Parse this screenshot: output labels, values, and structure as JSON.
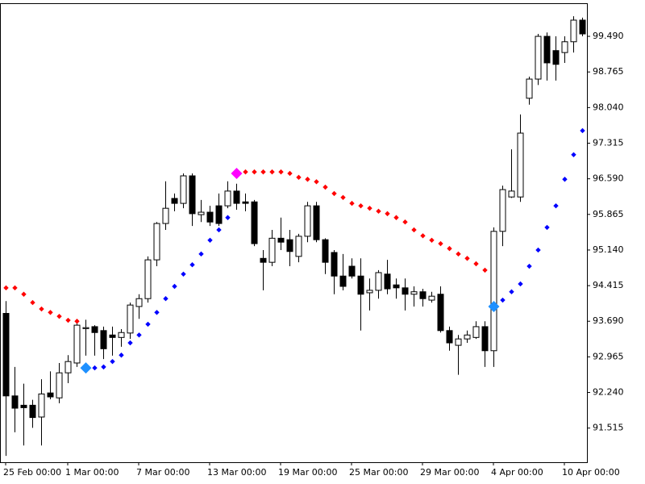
{
  "chart_data": {
    "type": "candlestick",
    "categories": [
      "25 Feb 00:00",
      null,
      null,
      null,
      null,
      null,
      null,
      "1 Mar 00:00",
      null,
      null,
      null,
      null,
      null,
      null,
      null,
      "7 Mar 00:00",
      null,
      null,
      null,
      null,
      null,
      null,
      null,
      "13 Mar 00:00",
      null,
      null,
      null,
      null,
      null,
      null,
      null,
      "19 Mar 00:00",
      null,
      null,
      null,
      null,
      null,
      null,
      null,
      "25 Mar 00:00",
      null,
      null,
      null,
      null,
      null,
      null,
      null,
      "29 Mar 00:00",
      null,
      null,
      null,
      null,
      null,
      null,
      null,
      "4 Apr 00:00",
      null,
      null,
      null,
      null,
      null,
      null,
      null,
      "10 Apr 00:00",
      null,
      null
    ],
    "open": [
      93.85,
      92.17,
      91.98,
      91.98,
      91.74,
      92.23,
      92.13,
      92.64,
      92.84,
      93.54,
      93.58,
      93.5,
      93.41,
      93.36,
      93.45,
      93.99,
      94.15,
      94.94,
      95.68,
      96.19,
      96.09,
      96.65,
      95.86,
      95.91,
      96.04,
      96.04,
      96.34,
      96.12,
      96.12,
      94.97,
      94.89,
      95.38,
      95.35,
      95.01,
      95.42,
      96.04,
      95.35,
      95.09,
      94.61,
      94.81,
      94.61,
      94.27,
      94.32,
      94.65,
      94.43,
      94.37,
      94.24,
      94.29,
      94.12,
      94.24,
      93.5,
      93.2,
      93.33,
      93.36,
      93.58,
      93.09,
      95.52,
      96.22,
      96.22,
      98.23,
      98.62,
      99.49,
      99.2,
      99.16,
      99.38,
      99.82
    ],
    "high": [
      94.1,
      92.76,
      92.42,
      92.09,
      92.51,
      92.67,
      92.84,
      93.0,
      93.69,
      93.72,
      93.61,
      93.58,
      93.58,
      93.53,
      94.07,
      94.24,
      95.01,
      95.71,
      96.54,
      96.29,
      96.7,
      96.7,
      96.16,
      96.04,
      96.29,
      96.54,
      96.49,
      96.29,
      96.16,
      95.14,
      95.55,
      95.8,
      95.55,
      95.47,
      96.12,
      96.12,
      95.38,
      95.14,
      95.06,
      94.97,
      94.97,
      94.56,
      94.73,
      94.94,
      94.56,
      94.56,
      94.4,
      94.35,
      94.29,
      94.4,
      93.58,
      93.41,
      93.5,
      93.69,
      93.69,
      95.6,
      96.45,
      97.19,
      97.9,
      98.67,
      99.54,
      99.57,
      99.49,
      99.49,
      99.9,
      99.87
    ],
    "low": [
      90.95,
      91.43,
      91.16,
      91.52,
      91.16,
      92.1,
      92.02,
      92.43,
      92.76,
      92.99,
      92.99,
      92.92,
      92.99,
      93.17,
      93.33,
      93.74,
      94.07,
      94.81,
      95.55,
      95.93,
      95.99,
      95.63,
      95.71,
      95.63,
      95.63,
      95.99,
      95.96,
      95.93,
      95.22,
      94.32,
      94.81,
      95.14,
      94.81,
      94.89,
      95.3,
      95.3,
      94.65,
      94.24,
      94.32,
      94.56,
      93.5,
      93.91,
      94.15,
      94.24,
      94.15,
      93.91,
      93.99,
      93.99,
      94.07,
      93.46,
      93.09,
      92.6,
      93.25,
      93.33,
      92.76,
      92.76,
      95.22,
      96.2,
      96.12,
      98.1,
      98.5,
      98.59,
      98.59,
      98.95,
      99.16,
      99.49
    ],
    "close": [
      92.17,
      91.92,
      91.93,
      91.73,
      92.21,
      92.15,
      92.64,
      92.87,
      93.61,
      93.56,
      93.46,
      93.13,
      93.36,
      93.46,
      94.02,
      94.15,
      94.94,
      95.68,
      95.99,
      96.09,
      96.65,
      95.88,
      95.91,
      95.71,
      95.68,
      96.34,
      96.09,
      96.09,
      95.27,
      94.89,
      95.38,
      95.3,
      95.11,
      95.42,
      96.04,
      95.35,
      94.89,
      94.61,
      94.4,
      94.61,
      94.24,
      94.32,
      94.68,
      94.35,
      94.37,
      94.24,
      94.29,
      94.15,
      94.2,
      93.5,
      93.25,
      93.33,
      93.41,
      93.58,
      93.09,
      95.52,
      96.37,
      96.34,
      97.52,
      98.62,
      99.49,
      98.95,
      98.92,
      99.38,
      99.82,
      99.54
    ],
    "up_color": "#ffffff",
    "down_color": "#000000",
    "outline_color": "#000000",
    "series": [
      {
        "color": "#ff0000",
        "size": "small",
        "values": [
          94.37,
          94.37,
          94.24,
          94.07,
          93.94,
          93.87,
          93.79,
          93.71,
          93.69,
          null,
          null,
          null,
          null,
          null,
          null,
          null,
          null,
          null,
          null,
          null,
          null,
          null,
          null,
          null,
          null,
          null,
          96.7,
          96.73,
          96.73,
          96.73,
          96.73,
          96.73,
          96.7,
          96.62,
          96.58,
          96.53,
          96.42,
          96.29,
          96.21,
          96.09,
          96.04,
          95.99,
          95.93,
          95.88,
          95.8,
          95.71,
          95.55,
          95.43,
          95.34,
          95.27,
          95.17,
          95.06,
          94.97,
          94.86,
          94.73,
          null,
          null,
          null,
          null,
          null,
          null,
          null,
          null,
          null,
          null,
          null
        ]
      },
      {
        "color": "#0000ff",
        "size": "small",
        "values": [
          null,
          null,
          null,
          null,
          null,
          null,
          null,
          null,
          null,
          92.74,
          92.74,
          92.76,
          92.87,
          93.0,
          93.25,
          93.41,
          93.63,
          93.87,
          94.15,
          94.4,
          94.65,
          94.84,
          95.06,
          95.34,
          95.55,
          95.8,
          null,
          null,
          null,
          null,
          null,
          null,
          null,
          null,
          null,
          null,
          null,
          null,
          null,
          null,
          null,
          null,
          null,
          null,
          null,
          null,
          null,
          null,
          null,
          null,
          null,
          null,
          null,
          null,
          null,
          93.99,
          94.12,
          94.29,
          94.45,
          94.81,
          95.14,
          95.6,
          96.04,
          96.58,
          97.08,
          97.57
        ]
      },
      {
        "color": "#1e90ff",
        "size": "large",
        "values": [
          null,
          null,
          null,
          null,
          null,
          null,
          null,
          null,
          null,
          92.74,
          null,
          null,
          null,
          null,
          null,
          null,
          null,
          null,
          null,
          null,
          null,
          null,
          null,
          null,
          null,
          null,
          null,
          null,
          null,
          null,
          null,
          null,
          null,
          null,
          null,
          null,
          null,
          null,
          null,
          null,
          null,
          null,
          null,
          null,
          null,
          null,
          null,
          null,
          null,
          null,
          null,
          null,
          null,
          null,
          null,
          93.99,
          null,
          null,
          null,
          null,
          null,
          null,
          null,
          null,
          null,
          null
        ]
      },
      {
        "color": "#ff00ff",
        "size": "large",
        "values": [
          null,
          null,
          null,
          null,
          null,
          null,
          null,
          null,
          null,
          null,
          null,
          null,
          null,
          null,
          null,
          null,
          null,
          null,
          null,
          null,
          null,
          null,
          null,
          null,
          null,
          null,
          96.7,
          null,
          null,
          null,
          null,
          null,
          null,
          null,
          null,
          null,
          null,
          null,
          null,
          null,
          null,
          null,
          null,
          null,
          null,
          null,
          null,
          null,
          null,
          null,
          null,
          null,
          null,
          null,
          null,
          null,
          null,
          null,
          null,
          null,
          null,
          null,
          null,
          null,
          null,
          null
        ]
      }
    ],
    "ylim": [
      90.82,
      100.23
    ],
    "yticks": [
      {
        "value": 91.515,
        "label": "91.515"
      },
      {
        "value": 92.24,
        "label": "92.240"
      },
      {
        "value": 92.965,
        "label": "92.965"
      },
      {
        "value": 93.69,
        "label": "93.690"
      },
      {
        "value": 94.415,
        "label": "94.415"
      },
      {
        "value": 95.14,
        "label": "95.140"
      },
      {
        "value": 95.865,
        "label": "95.865"
      },
      {
        "value": 96.59,
        "label": "96.590"
      },
      {
        "value": 97.315,
        "label": "97.315"
      },
      {
        "value": 98.04,
        "label": "98.040"
      },
      {
        "value": 98.765,
        "label": "98.765"
      },
      {
        "value": 99.49,
        "label": "99.490"
      }
    ],
    "grid": false
  }
}
